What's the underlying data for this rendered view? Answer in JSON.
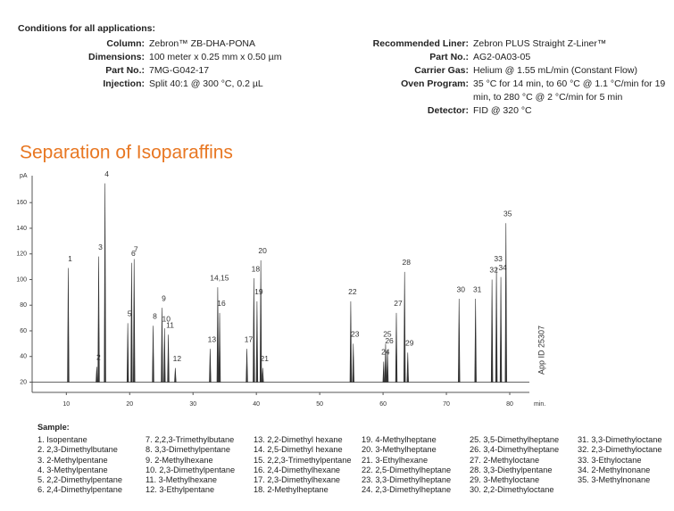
{
  "conditions": {
    "heading": "Conditions for all applications:",
    "left": [
      {
        "label": "Column:",
        "value": "Zebron™ ZB-DHA-PONA"
      },
      {
        "label": "Dimensions:",
        "value": "100 meter x 0.25 mm x 0.50 µm"
      },
      {
        "label": "Part No.:",
        "value": "7MG-G042-17"
      },
      {
        "label": "Injection:",
        "value": "Split 40:1 @ 300 °C, 0.2 µL"
      }
    ],
    "right": [
      {
        "label": "Recommended Liner:",
        "value": "Zebron PLUS Straight Z-Liner™"
      },
      {
        "label": "Part No.:",
        "value": "AG2-0A03-05"
      },
      {
        "label": "Carrier Gas:",
        "value": "Helium @ 1.55 mL/min (Constant Flow)"
      },
      {
        "label": "Oven Program:",
        "value": "35 °C for 14 min, to 60 °C @ 1.1 °C/min for 19 min, to 280 °C @ 2 °C/min for 5 min"
      },
      {
        "label": "Detector:",
        "value": "FID @ 320 °C"
      }
    ]
  },
  "chart_data": {
    "type": "chromatogram",
    "title": "Separation of Isoparaffins",
    "y_label": "pA",
    "x_label": "min.",
    "annotation": "App ID 25307",
    "xlim": [
      4.6,
      83.1
    ],
    "xticks": [
      10,
      20,
      30,
      40,
      50,
      60,
      70,
      80
    ],
    "ylim": [
      12,
      181
    ],
    "yticks": [
      20,
      40,
      60,
      80,
      100,
      120,
      140,
      160
    ],
    "baseline": 20,
    "color": "#333333",
    "peaks": [
      "1",
      "2",
      "3",
      "4",
      "5",
      "6",
      "7",
      "8",
      "9",
      "10",
      "11",
      "12",
      "13",
      "14,15",
      "16",
      "17",
      "18",
      "19",
      "20",
      "21",
      "22",
      "23",
      "24",
      "25",
      "26",
      "27",
      "28",
      "29",
      "30",
      "31",
      "32",
      "33",
      "34",
      "35"
    ],
    "x": [
      10.3,
      14.8,
      15.1,
      16.1,
      19.7,
      20.3,
      20.7,
      23.7,
      25.1,
      25.5,
      26.1,
      27.2,
      32.7,
      33.9,
      34.2,
      38.5,
      39.6,
      40.1,
      40.7,
      41.0,
      54.9,
      55.3,
      60.1,
      60.4,
      60.7,
      62.1,
      63.4,
      63.9,
      72.0,
      74.6,
      77.2,
      77.9,
      78.6,
      79.4
    ],
    "values": [
      109,
      32,
      118,
      175,
      66,
      113,
      116,
      64,
      78,
      62,
      57,
      31,
      46,
      94,
      74,
      46,
      101,
      83,
      115,
      31,
      83,
      50,
      36,
      50,
      45,
      74,
      106,
      43,
      85,
      85,
      100,
      109,
      102,
      144
    ]
  },
  "sample": {
    "heading": "Sample:",
    "items": [
      "1. Isopentane",
      "2. 2,3-Dimethylbutane",
      "3. 2-Methylpentane",
      "4. 3-Methylpentane",
      "5. 2,2-Dimethylpentane",
      "6. 2,4-Dimethylpentane",
      "7. 2,2,3-Trimethylbutane",
      "8. 3,3-Dimethylpentane",
      "9. 2-Methylhexane",
      "10. 2,3-Dimethylpentane",
      "11. 3-Methylhexane",
      "12. 3-Ethylpentane",
      "13. 2,2-Dimethyl hexane",
      "14. 2,5-Dimethyl hexane",
      "15. 2,2,3-Trimethylpentane",
      "16. 2,4-Dimethylhexane",
      "17. 2,3-Dimethylhexane",
      "18. 2-Methylheptane",
      "19. 4-Methylheptane",
      "20. 3-Methylheptane",
      "21. 3-Ethylhexane",
      "22. 2,5-Dimethylheptane",
      "23. 3,3-Dimethylheptane",
      "24. 2,3-Dimethylheptane",
      "25. 3,5-Dimethylheptane",
      "26. 3,4-Dimethylheptane",
      "27. 2-Methyloctane",
      "28. 3,3-Diethylpentane",
      "29. 3-Methyloctane",
      "30. 2,2-Dimethyloctane",
      "31. 3,3-Dimethyloctane",
      "32. 2,3-Dimethyloctane",
      "33. 3-Ethyloctane",
      "34. 2-Methylnonane",
      "35. 3-Methylnonane"
    ]
  }
}
